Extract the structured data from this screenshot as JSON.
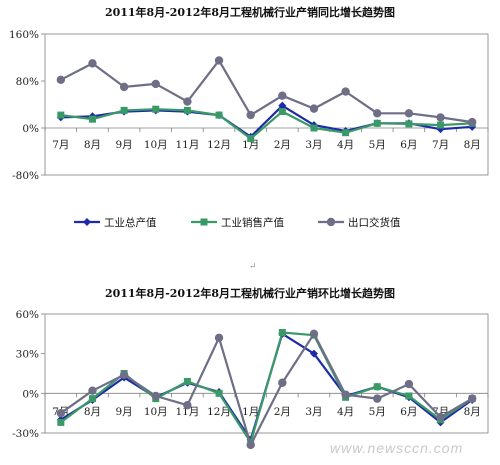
{
  "watermark": "www.newsccn.com",
  "separator_mark": "↵",
  "chart_data": [
    {
      "type": "line",
      "title": "2011年8月-2012年8月工程机械行业产销同比增长趋势图",
      "categories": [
        "7月",
        "8月",
        "9月",
        "10月",
        "11月",
        "12月",
        "1月",
        "2月",
        "3月",
        "4月",
        "5月",
        "6月",
        "7月",
        "8月"
      ],
      "y_ticks": [
        "160%",
        "80%",
        "0%",
        "-80%"
      ],
      "ylim": [
        -80,
        160
      ],
      "series": [
        {
          "name": "工业总产值",
          "color": "#1f2aa8",
          "marker": "diamond",
          "values": [
            18,
            20,
            28,
            30,
            28,
            22,
            -15,
            38,
            5,
            -5,
            8,
            8,
            -2,
            2
          ]
        },
        {
          "name": "工业销售产值",
          "color": "#3a9a67",
          "marker": "square",
          "values": [
            22,
            15,
            30,
            32,
            30,
            22,
            -18,
            28,
            0,
            -8,
            8,
            7,
            5,
            8
          ]
        },
        {
          "name": "出口交货值",
          "color": "#6e6e86",
          "marker": "circle",
          "values": [
            82,
            110,
            70,
            75,
            45,
            115,
            22,
            55,
            33,
            62,
            25,
            25,
            18,
            10
          ]
        }
      ],
      "legend": "bottom"
    },
    {
      "type": "line",
      "title": "2011年8月-2012年8月工程机械行业产销环比增长趋势图",
      "categories": [
        "7月",
        "8月",
        "9月",
        "10月",
        "11月",
        "12月",
        "1月",
        "2月",
        "3月",
        "4月",
        "5月",
        "6月",
        "7月",
        "8月"
      ],
      "y_ticks": [
        "60%",
        "30%",
        "0%",
        "-30%"
      ],
      "ylim": [
        -30,
        60
      ],
      "series": [
        {
          "color": "#1f2aa8",
          "marker": "diamond",
          "values": [
            -20,
            -5,
            12,
            -3,
            8,
            1,
            -35,
            45,
            30,
            -2,
            5,
            -3,
            -22,
            -5
          ]
        },
        {
          "color": "#3a9a67",
          "marker": "square",
          "values": [
            -22,
            -4,
            15,
            -4,
            9,
            0,
            -37,
            46,
            44,
            -3,
            5,
            -2,
            -20,
            -4
          ]
        },
        {
          "color": "#6e6e86",
          "marker": "circle",
          "values": [
            -15,
            2,
            14,
            -2,
            -9,
            42,
            -39,
            8,
            45,
            -1,
            -4,
            7,
            -18,
            -4
          ]
        }
      ]
    }
  ]
}
